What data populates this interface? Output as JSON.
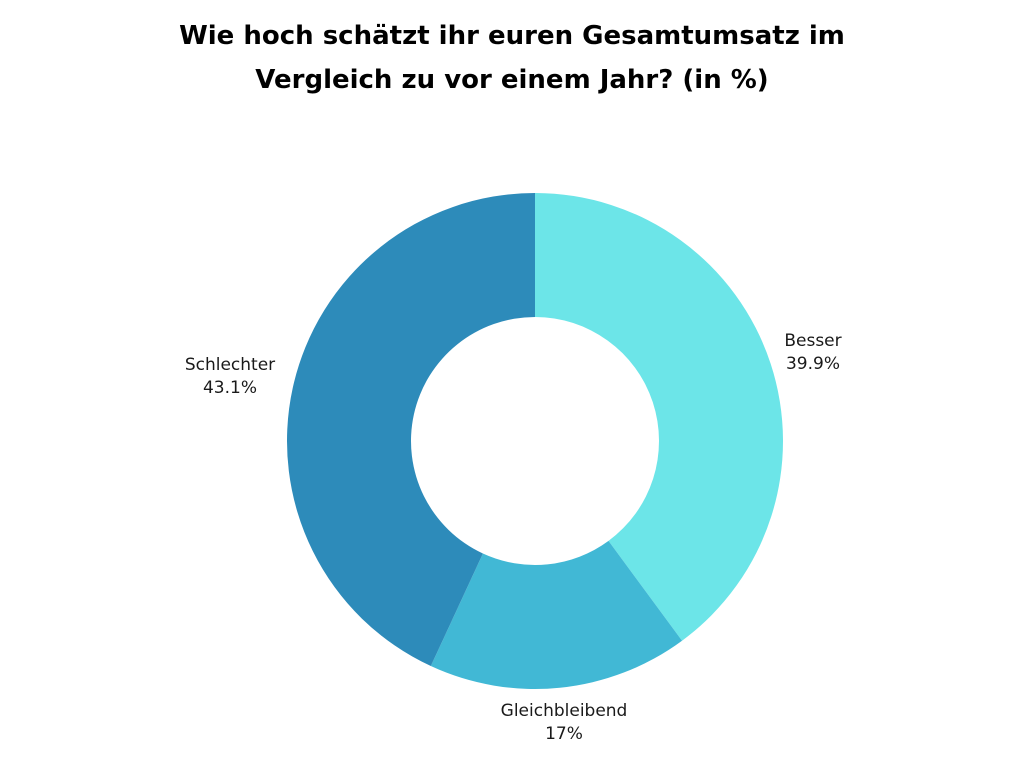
{
  "title_lines": [
    "Wie hoch schätzt ihr euren Gesamtumsatz im",
    "Vergleich zu vor einem Jahr? (in %)"
  ],
  "chart_data": {
    "type": "pie",
    "style": "donut",
    "title": "Wie hoch schätzt ihr euren Gesamtumsatz im Vergleich zu vor einem Jahr? (in %)",
    "start": "top, clockwise",
    "slices": [
      {
        "label": "Besser",
        "value": 39.9,
        "value_label": "39.9%",
        "color": "#6ce5e8"
      },
      {
        "label": "Gleichbleibend",
        "value": 17,
        "value_label": "17%",
        "color": "#41b8d5"
      },
      {
        "label": "Schlechter",
        "value": 43.1,
        "value_label": "43.1%",
        "color": "#2d8bba"
      }
    ]
  }
}
